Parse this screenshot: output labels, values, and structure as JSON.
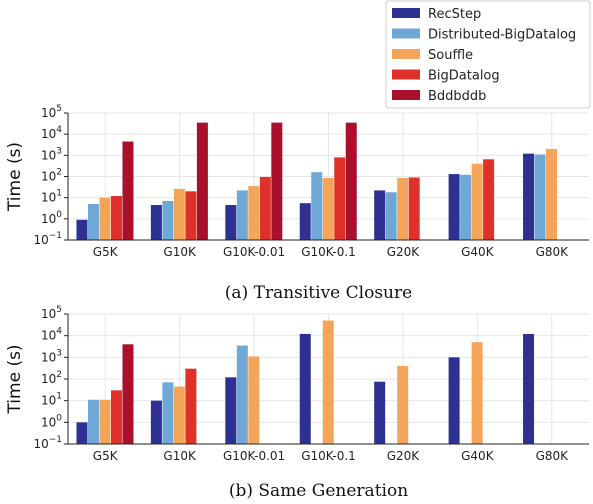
{
  "legend": {
    "entries": [
      {
        "name": "RecStep",
        "color": "#2e3192"
      },
      {
        "name": "Distributed-BigDatalog",
        "color": "#6fa8d6"
      },
      {
        "name": "Souffle",
        "color": "#f5a55a"
      },
      {
        "name": "BigDatalog",
        "color": "#e0302a"
      },
      {
        "name": "Bddbddb",
        "color": "#a8102c"
      }
    ]
  },
  "chart_data": [
    {
      "type": "bar",
      "caption": "(a) Transitive Closure",
      "ylabel": "Time (s)",
      "yscale": "log",
      "ylim": [
        0.1,
        100000
      ],
      "yticks": [
        {
          "value": 0.1,
          "base": "10",
          "exp": "−1"
        },
        {
          "value": 1,
          "base": "10",
          "exp": "0"
        },
        {
          "value": 10,
          "base": "10",
          "exp": "1"
        },
        {
          "value": 100,
          "base": "10",
          "exp": "2"
        },
        {
          "value": 1000,
          "base": "10",
          "exp": "3"
        },
        {
          "value": 10000,
          "base": "10",
          "exp": "4"
        },
        {
          "value": 100000,
          "base": "10",
          "exp": "5"
        }
      ],
      "grid": true,
      "categories": [
        "G5K",
        "G10K",
        "G10K-0.01",
        "G10K-0.1",
        "G20K",
        "G40K",
        "G80K"
      ],
      "series": [
        {
          "name": "RecStep",
          "values": [
            0.9,
            4.5,
            4.5,
            5.5,
            22,
            130,
            1200
          ]
        },
        {
          "name": "Distributed-BigDatalog",
          "values": [
            5,
            7,
            22,
            160,
            18,
            120,
            1100
          ]
        },
        {
          "name": "Souffle",
          "values": [
            10,
            26,
            35,
            85,
            85,
            400,
            2000
          ]
        },
        {
          "name": "BigDatalog",
          "values": [
            12,
            20,
            95,
            800,
            90,
            650,
            null
          ]
        },
        {
          "name": "Bddbddb",
          "values": [
            4500,
            35000,
            35000,
            35000,
            null,
            null,
            null
          ]
        }
      ]
    },
    {
      "type": "bar",
      "caption": "(b) Same Generation",
      "ylabel": "Time (s)",
      "yscale": "log",
      "ylim": [
        0.1,
        100000
      ],
      "yticks": [
        {
          "value": 0.1,
          "base": "10",
          "exp": "−1"
        },
        {
          "value": 1,
          "base": "10",
          "exp": "0"
        },
        {
          "value": 10,
          "base": "10",
          "exp": "1"
        },
        {
          "value": 100,
          "base": "10",
          "exp": "2"
        },
        {
          "value": 1000,
          "base": "10",
          "exp": "3"
        },
        {
          "value": 10000,
          "base": "10",
          "exp": "4"
        },
        {
          "value": 100000,
          "base": "10",
          "exp": "5"
        }
      ],
      "grid": true,
      "categories": [
        "G5K",
        "G10K",
        "G10K-0.01",
        "G10K-0.1",
        "G20K",
        "G40K",
        "G80K"
      ],
      "series": [
        {
          "name": "RecStep",
          "values": [
            1,
            10,
            120,
            12000,
            75,
            1000,
            12000
          ]
        },
        {
          "name": "Distributed-BigDatalog",
          "values": [
            11,
            70,
            3500,
            null,
            null,
            null,
            null
          ]
        },
        {
          "name": "Souffle",
          "values": [
            11,
            45,
            1100,
            50000,
            400,
            5000,
            null
          ]
        },
        {
          "name": "BigDatalog",
          "values": [
            30,
            300,
            null,
            null,
            null,
            null,
            null
          ]
        },
        {
          "name": "Bddbddb",
          "values": [
            4000,
            null,
            null,
            null,
            null,
            null,
            null
          ]
        }
      ]
    }
  ]
}
